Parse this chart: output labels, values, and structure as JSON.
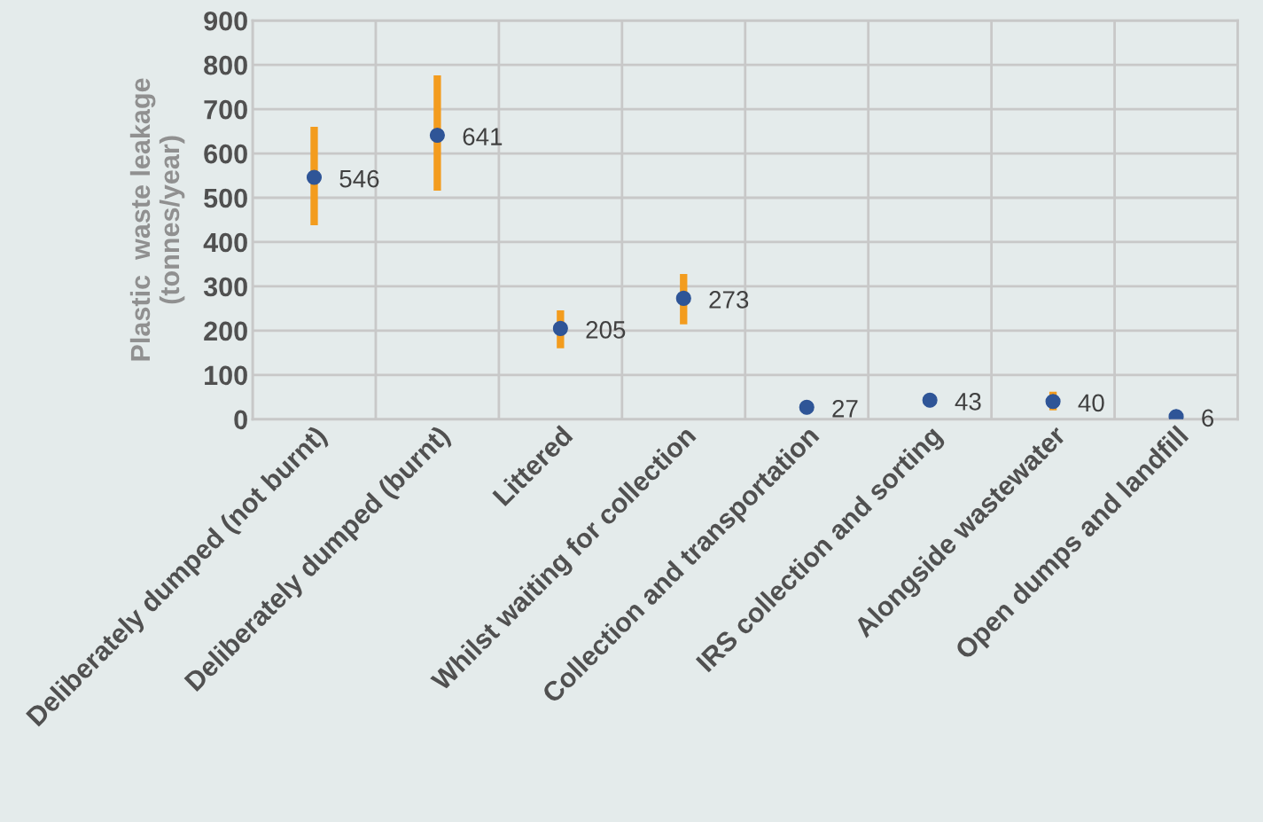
{
  "chart_data": {
    "type": "scatter",
    "ylabel": "Plastic  waste leakage\n(tonnes/year)",
    "categories": [
      "Deliberately dumped (not burnt)",
      "Deliberately dumped (burnt)",
      "Littered",
      "Whilst waiting for collection",
      "Collection and transportation",
      "IRS collection and sorting",
      "Alongside wastewater",
      "Open dumps and landfill"
    ],
    "values": [
      546,
      641,
      205,
      273,
      27,
      43,
      40,
      6
    ],
    "errors": [
      [
        438,
        660
      ],
      [
        516,
        776
      ],
      [
        160,
        246
      ],
      [
        214,
        328
      ],
      null,
      null,
      [
        20,
        62
      ],
      null
    ],
    "color": "#2f5597",
    "ylim": [
      0,
      900
    ],
    "yticks": [
      0,
      100,
      200,
      300,
      400,
      500,
      600,
      700,
      800,
      900
    ],
    "grid": true,
    "data_labels": true,
    "marker": "circle"
  }
}
